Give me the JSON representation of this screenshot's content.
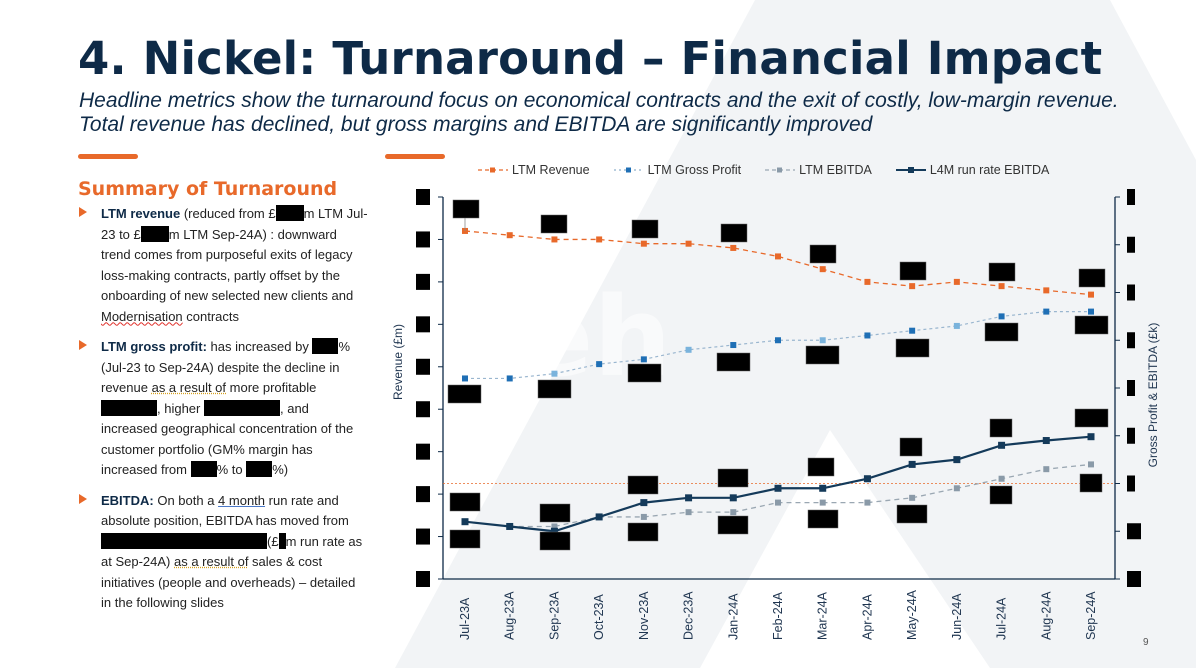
{
  "slide": {
    "title": "4. Nickel: Turnaround – Financial Impact",
    "subtitle": "Headline metrics show the turnaround focus on economical contracts and the exit of costly, low-margin revenue. Total revenue has declined, but gross margins and EBITDA are significantly improved",
    "page_number": "9",
    "watermark_text": "peh"
  },
  "summary": {
    "heading": "Summary of Turnaround",
    "bullets": [
      {
        "lead": "LTM revenue",
        "t1": " (reduced from £",
        "t2": "m LTM Jul-23 to £",
        "t3": "m LTM Sep-24A) : downward trend comes from purposeful exits of legacy loss-making contracts, partly offset by the onboarding of new selected new clients and ",
        "t4": "Modernisation",
        "t5": " contracts"
      },
      {
        "lead": "LTM gross profit:",
        "t1": " has increased by ",
        "t2": "% (Jul-23 to Sep-24A) despite the decline in revenue ",
        "t3": "as a result of",
        "t4": " more profitable ",
        "t5": ", higher ",
        "t6": ", and increased geographical concentration of the customer portfolio (GM% margin has increased from ",
        "t7": "% to ",
        "t8": "%)"
      },
      {
        "lead": "EBITDA:",
        "t1": " On both a ",
        "t2": "4 month",
        "t3": " run rate and absolute position, EBITDA has moved from ",
        "t4": "(£",
        "t5": "m run rate as at Sep-24A) ",
        "t6": "as a result of",
        "t7": " sales & cost initiatives (people and overheads) – detailed in the following slides"
      }
    ]
  },
  "colors": {
    "navy": "#0e2a47",
    "orange": "#e8692a",
    "gp_blue": "#1f6fb5",
    "gp_light": "#7ab3dc",
    "ebitda_grey": "#8a9aa8",
    "run_rate": "#143a5a"
  },
  "chart_data": {
    "type": "line",
    "title": "",
    "xlabel": "",
    "ylabel_left": "Revenue (£m)",
    "ylabel_right": "Gross Profit & EBITDA (£k)",
    "tick_labels_redacted": true,
    "ylim_left_index": [
      0,
      9
    ],
    "ylim_right_index": [
      0,
      8
    ],
    "value_units": "axis tick index (tick labels redacted)",
    "legend_position": "top",
    "categories": [
      "Jul-23A",
      "Aug-23A",
      "Sep-23A",
      "Oct-23A",
      "Nov-23A",
      "Dec-23A",
      "Jan-24A",
      "Feb-24A",
      "Mar-24A",
      "Apr-24A",
      "May-24A",
      "Jun-24A",
      "Jul-24A",
      "Aug-24A",
      "Sep-24A"
    ],
    "series": [
      {
        "name": "LTM  Revenue",
        "axis": "left",
        "style": "dashed",
        "values": [
          8.2,
          8.1,
          8.0,
          8.0,
          7.9,
          7.9,
          7.8,
          7.6,
          7.3,
          7.0,
          6.9,
          7.0,
          6.9,
          6.8,
          6.7
        ]
      },
      {
        "name": "LTM Gross Profit",
        "axis": "right",
        "style": "dotted",
        "values": [
          4.2,
          4.2,
          4.3,
          4.5,
          4.6,
          4.8,
          4.9,
          5.0,
          5.0,
          5.1,
          5.2,
          5.3,
          5.5,
          5.6,
          5.6
        ]
      },
      {
        "name": "LTM EBITDA",
        "axis": "right",
        "style": "dashed",
        "values": [
          1.2,
          1.1,
          1.1,
          1.3,
          1.3,
          1.4,
          1.4,
          1.6,
          1.6,
          1.6,
          1.7,
          1.9,
          2.1,
          2.3,
          2.4
        ]
      },
      {
        "name": "L4M run rate EBITDA",
        "axis": "right",
        "style": "solid",
        "values": [
          1.2,
          1.1,
          1.0,
          1.3,
          1.6,
          1.7,
          1.7,
          1.9,
          1.9,
          2.1,
          2.4,
          2.5,
          2.8,
          2.9,
          2.98
        ]
      }
    ],
    "reference_line": {
      "axis": "right",
      "value": 2.0,
      "style": "dotted",
      "color": "#e8692a"
    },
    "data_labels_redacted": true
  }
}
